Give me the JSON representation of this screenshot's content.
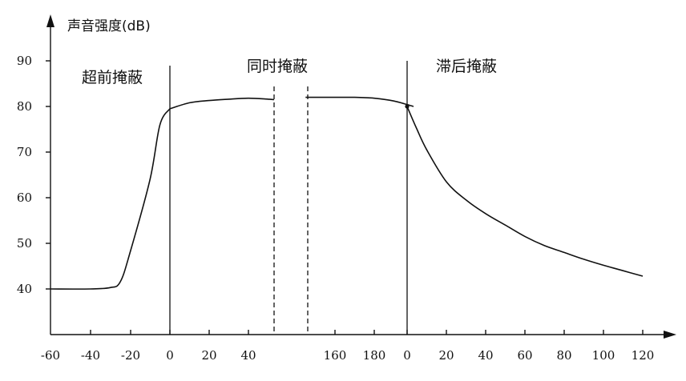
{
  "chart_data": {
    "type": "line",
    "ylabel": "声音强度(dB)",
    "ylim": [
      30,
      95
    ],
    "grid": false,
    "y_ticks": [
      40,
      50,
      60,
      70,
      80,
      90
    ],
    "x_tick_labels": [
      "-60",
      "-40",
      "-20",
      "0",
      "20",
      "40",
      "160",
      "180",
      "0",
      "20",
      "40",
      "60",
      "80",
      "100",
      "120"
    ],
    "regions": [
      {
        "label": "超前掩蔽"
      },
      {
        "label": "同时掩蔽"
      },
      {
        "label": "滞后掩蔽"
      }
    ],
    "series": [
      {
        "segment": "pre",
        "x": [
          -60,
          -40,
          -30,
          -25,
          -20,
          -10,
          -5,
          0
        ],
        "y": [
          40,
          40,
          40.3,
          41.5,
          48,
          64,
          76,
          79.5
        ]
      },
      {
        "segment": "simultaneous-start",
        "x": [
          0,
          10,
          20,
          30,
          40,
          50,
          53
        ],
        "y": [
          79.5,
          80.8,
          81.3,
          81.6,
          81.8,
          81.6,
          81.5
        ]
      },
      {
        "segment": "simultaneous-end",
        "x": [
          145,
          160,
          170,
          180,
          190,
          200
        ],
        "y": [
          82,
          82,
          82,
          81.8,
          81.2,
          80
        ]
      },
      {
        "segment": "post",
        "x": [
          0,
          5,
          10,
          20,
          30,
          40,
          50,
          60,
          70,
          80,
          90,
          100,
          110,
          120
        ],
        "y": [
          80,
          75,
          70.5,
          63.5,
          59.5,
          56.5,
          54,
          51.5,
          49.5,
          48,
          46.5,
          45.2,
          44,
          42.8
        ]
      }
    ]
  }
}
